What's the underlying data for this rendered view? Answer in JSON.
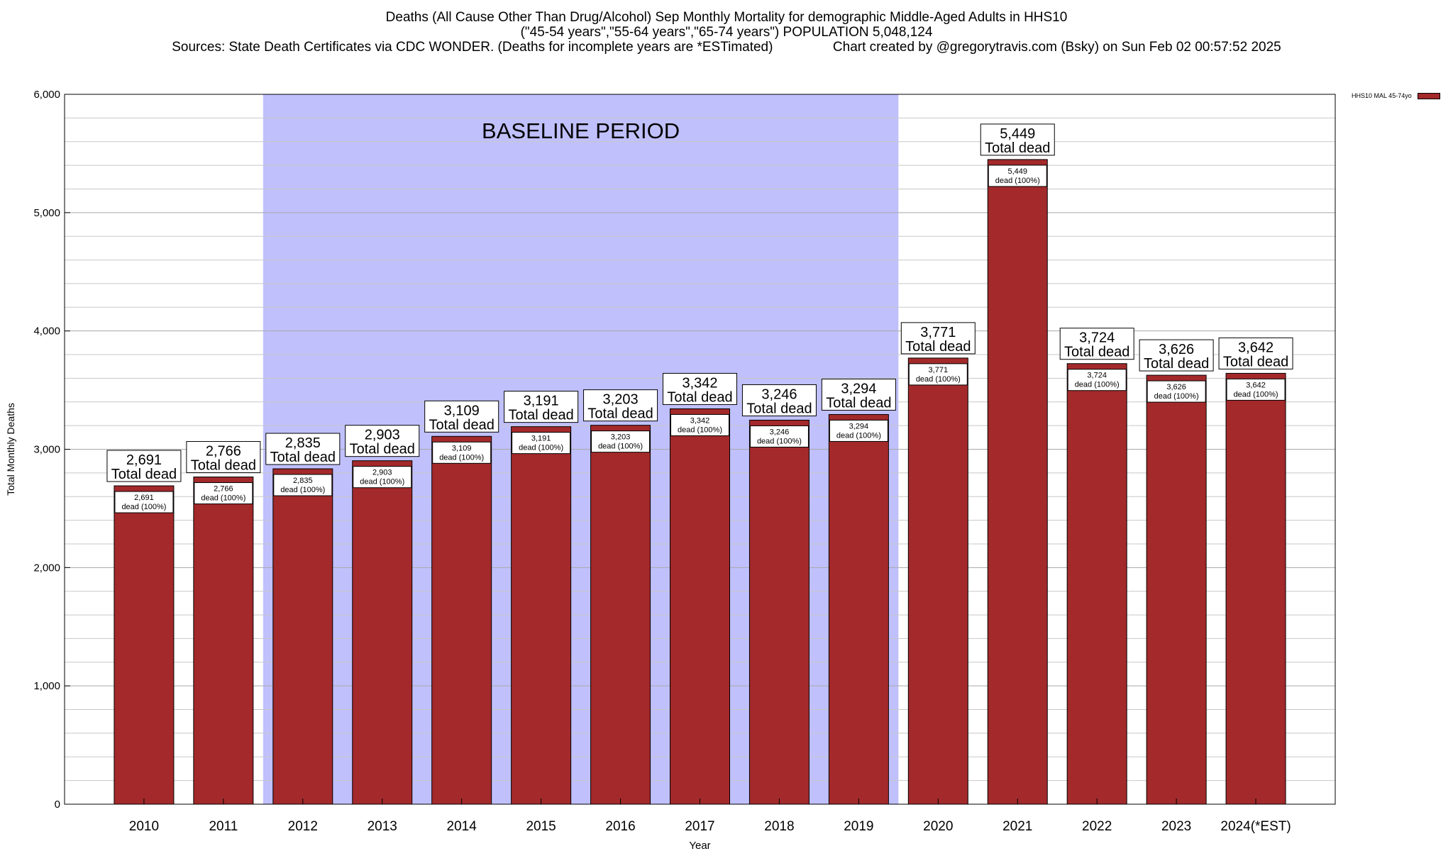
{
  "chart_data": {
    "type": "bar",
    "title_lines": [
      "Deaths (All Cause Other Than Drug/Alcohol) Sep Monthly Mortality for demographic Middle-Aged Adults in HHS10",
      "(\"45-54 years\",\"55-64 years\",\"65-74 years\") POPULATION 5,048,124",
      "Sources: State Death Certificates via CDC WONDER. (Deaths for incomplete years are *ESTimated)                Chart created by @gregorytravis.com (Bsky) on Sun Feb 02 00:57:52 2025"
    ],
    "xlabel": "Year",
    "ylabel": "Total Monthly Deaths",
    "ylim": [
      0,
      6000
    ],
    "yticks": [
      0,
      1000,
      2000,
      3000,
      4000,
      5000,
      6000
    ],
    "ytick_labels": [
      "0",
      "1,000",
      "2,000",
      "3,000",
      "4,000",
      "5,000",
      "6,000"
    ],
    "minor_grid_step": 200,
    "grid": true,
    "categories": [
      "2010",
      "2011",
      "2012",
      "2013",
      "2014",
      "2015",
      "2016",
      "2017",
      "2018",
      "2019",
      "2020",
      "2021",
      "2022",
      "2023",
      "2024(*EST)"
    ],
    "series": [
      {
        "name": "HHS10 MAL 45-74yo",
        "color": "#a3292b",
        "values": [
          2691,
          2766,
          2835,
          2903,
          3109,
          3191,
          3203,
          3342,
          3246,
          3294,
          3771,
          5449,
          3724,
          3626,
          3642
        ],
        "value_labels": [
          "2,691",
          "2,766",
          "2,835",
          "2,903",
          "3,109",
          "3,191",
          "3,203",
          "3,342",
          "3,246",
          "3,294",
          "3,771",
          "5,449",
          "3,724",
          "3,626",
          "3,642"
        ]
      }
    ],
    "total_label_suffix": "Total dead",
    "inner_label_suffix": "dead (100%)",
    "baseline": {
      "label": "BASELINE PERIOD",
      "start_category": "2012",
      "end_category": "2019",
      "color": "#c0c0fc"
    },
    "legend_position": "top-right"
  }
}
